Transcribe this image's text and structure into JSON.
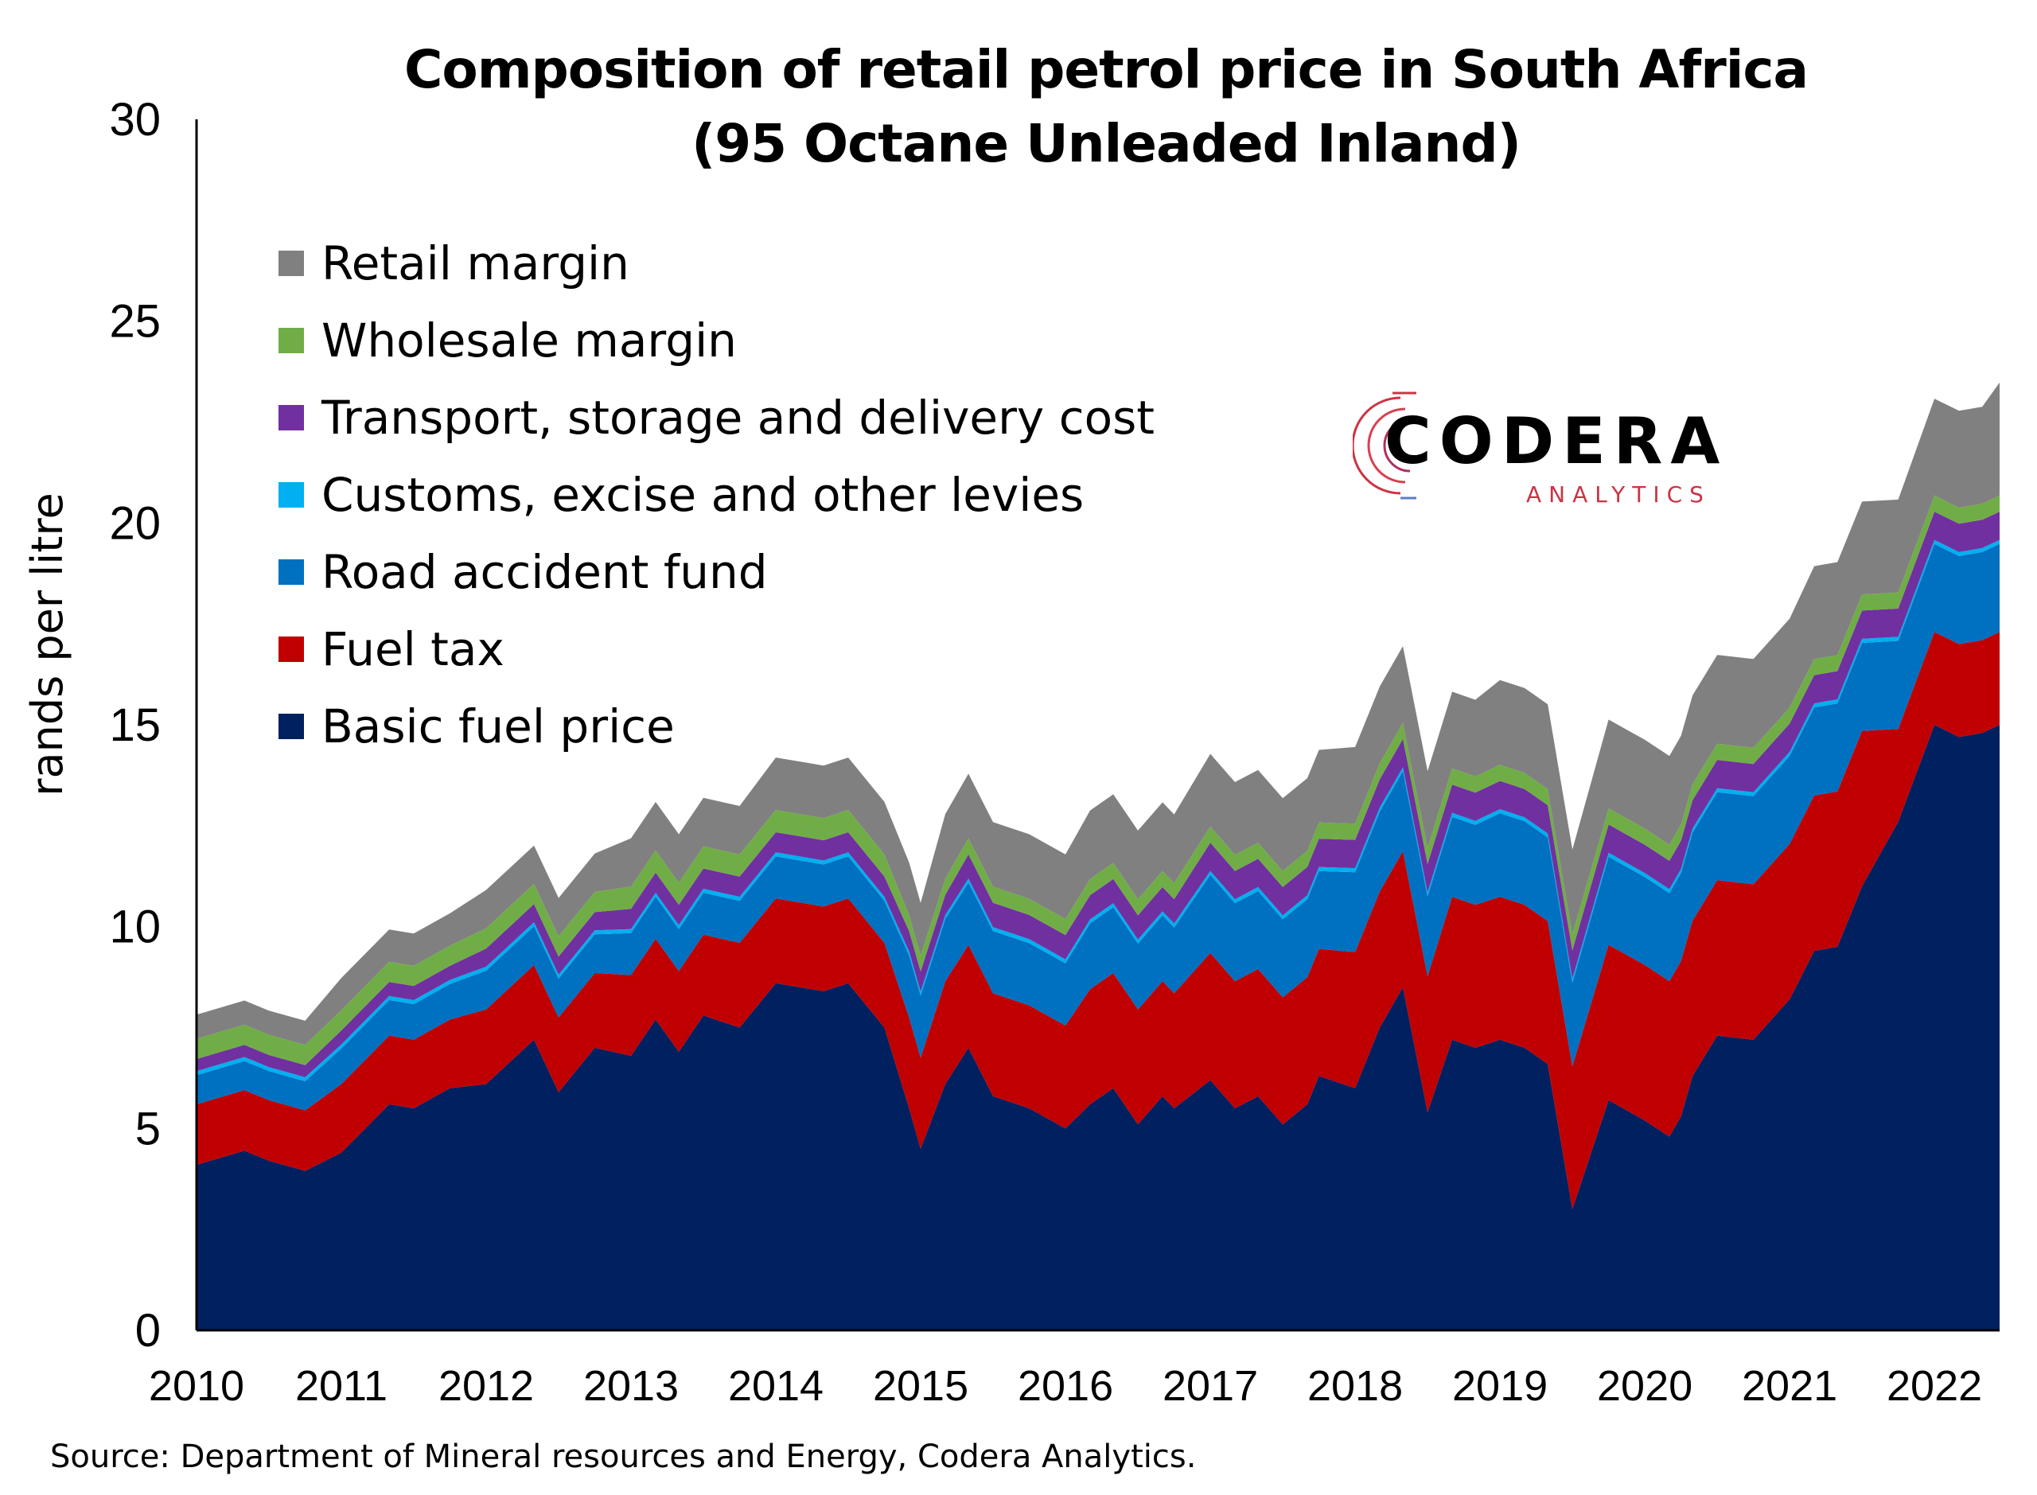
{
  "chart_data": {
    "type": "area",
    "stacked": true,
    "title": "Composition of retail petrol price in South Africa",
    "subtitle": "(95 Octane Unleaded Inland)",
    "ylabel": "rands per litre",
    "xlabel": "",
    "ylim": [
      0,
      30
    ],
    "y_ticks": [
      "0",
      "5",
      "10",
      "15",
      "20",
      "25",
      "30"
    ],
    "x_ticks": [
      "2010",
      "2011",
      "2012",
      "2013",
      "2014",
      "2015",
      "2016",
      "2017",
      "2018",
      "2019",
      "2020",
      "2021",
      "2022"
    ],
    "x_range": [
      2010.0,
      2022.45
    ],
    "grid": false,
    "legend_position": "top-left",
    "x": [
      2010.0,
      2010.33,
      2010.5,
      2010.75,
      2011.0,
      2011.33,
      2011.5,
      2011.75,
      2012.0,
      2012.33,
      2012.5,
      2012.75,
      2013.0,
      2013.17,
      2013.33,
      2013.5,
      2013.75,
      2014.0,
      2014.33,
      2014.5,
      2014.75,
      2014.92,
      2015.0,
      2015.17,
      2015.33,
      2015.5,
      2015.75,
      2016.0,
      2016.17,
      2016.33,
      2016.5,
      2016.67,
      2016.75,
      2017.0,
      2017.17,
      2017.33,
      2017.5,
      2017.67,
      2017.75,
      2018.0,
      2018.17,
      2018.33,
      2018.5,
      2018.67,
      2018.83,
      2019.0,
      2019.17,
      2019.33,
      2019.5,
      2019.75,
      2020.0,
      2020.17,
      2020.25,
      2020.33,
      2020.5,
      2020.75,
      2021.0,
      2021.17,
      2021.33,
      2021.5,
      2021.75,
      2022.0,
      2022.17,
      2022.33,
      2022.45
    ],
    "series": [
      {
        "name": "Basic fuel price",
        "color": "#002060",
        "values": [
          4.1,
          4.45,
          4.2,
          3.95,
          4.4,
          5.6,
          5.5,
          6.0,
          6.1,
          7.2,
          5.9,
          7.0,
          6.8,
          7.7,
          6.9,
          7.8,
          7.5,
          8.6,
          8.4,
          8.6,
          7.5,
          5.5,
          4.5,
          6.1,
          7.0,
          5.8,
          5.5,
          5.0,
          5.6,
          6.0,
          5.1,
          5.8,
          5.5,
          6.2,
          5.5,
          5.8,
          5.1,
          5.6,
          6.3,
          6.0,
          7.5,
          8.5,
          5.4,
          7.2,
          7.0,
          7.2,
          7.0,
          6.6,
          3.0,
          5.7,
          5.2,
          4.8,
          5.3,
          6.3,
          7.3,
          7.2,
          8.2,
          9.4,
          9.5,
          11.0,
          12.6,
          15.0,
          14.7,
          14.8,
          15.0
        ]
      },
      {
        "name": "Fuel tax",
        "color": "#C00000",
        "values": [
          1.5,
          1.5,
          1.5,
          1.5,
          1.7,
          1.7,
          1.7,
          1.7,
          1.85,
          1.85,
          1.85,
          1.85,
          2.0,
          2.0,
          2.0,
          2.0,
          2.1,
          2.1,
          2.1,
          2.1,
          2.1,
          2.25,
          2.25,
          2.55,
          2.55,
          2.55,
          2.55,
          2.55,
          2.85,
          2.85,
          2.85,
          2.85,
          2.85,
          3.15,
          3.15,
          3.15,
          3.15,
          3.15,
          3.15,
          3.37,
          3.37,
          3.37,
          3.37,
          3.54,
          3.54,
          3.54,
          3.54,
          3.54,
          3.54,
          3.85,
          3.85,
          3.85,
          3.85,
          3.85,
          3.85,
          3.85,
          3.85,
          3.85,
          3.85,
          3.85,
          2.3,
          2.3,
          2.3,
          2.3,
          2.3
        ]
      },
      {
        "name": "Road accident fund",
        "color": "#0070C0",
        "values": [
          0.72,
          0.72,
          0.72,
          0.72,
          0.88,
          0.88,
          0.88,
          0.88,
          0.96,
          0.96,
          0.96,
          0.96,
          1.04,
          1.04,
          1.04,
          1.04,
          1.04,
          1.04,
          1.04,
          1.04,
          1.04,
          1.54,
          1.54,
          1.54,
          1.54,
          1.54,
          1.54,
          1.54,
          1.63,
          1.63,
          1.63,
          1.63,
          1.63,
          1.93,
          1.93,
          1.93,
          1.93,
          1.93,
          1.93,
          1.98,
          1.98,
          1.98,
          1.98,
          1.98,
          1.98,
          2.07,
          2.07,
          2.07,
          2.07,
          2.18,
          2.18,
          2.18,
          2.18,
          2.18,
          2.18,
          2.18,
          2.18,
          2.18,
          2.18,
          2.18,
          2.18,
          2.18,
          2.18,
          2.18,
          2.18
        ]
      },
      {
        "name": "Customs, excise and other levies",
        "color": "#00B0F0",
        "values": [
          0.1,
          0.1,
          0.1,
          0.1,
          0.1,
          0.1,
          0.1,
          0.1,
          0.1,
          0.1,
          0.1,
          0.1,
          0.1,
          0.1,
          0.1,
          0.1,
          0.1,
          0.1,
          0.1,
          0.1,
          0.1,
          0.1,
          0.1,
          0.1,
          0.1,
          0.1,
          0.1,
          0.1,
          0.1,
          0.1,
          0.1,
          0.1,
          0.1,
          0.1,
          0.1,
          0.1,
          0.1,
          0.1,
          0.1,
          0.1,
          0.1,
          0.1,
          0.1,
          0.1,
          0.1,
          0.1,
          0.1,
          0.1,
          0.1,
          0.1,
          0.1,
          0.1,
          0.1,
          0.1,
          0.1,
          0.1,
          0.1,
          0.1,
          0.1,
          0.1,
          0.1,
          0.1,
          0.1,
          0.1,
          0.1
        ]
      },
      {
        "name": "Transport, storage and delivery cost",
        "color": "#7030A0",
        "values": [
          0.3,
          0.3,
          0.3,
          0.3,
          0.35,
          0.35,
          0.35,
          0.35,
          0.45,
          0.45,
          0.45,
          0.45,
          0.5,
          0.5,
          0.5,
          0.5,
          0.5,
          0.5,
          0.5,
          0.5,
          0.5,
          0.5,
          0.5,
          0.5,
          0.6,
          0.6,
          0.6,
          0.6,
          0.6,
          0.6,
          0.6,
          0.6,
          0.6,
          0.7,
          0.7,
          0.7,
          0.7,
          0.7,
          0.7,
          0.7,
          0.7,
          0.7,
          0.7,
          0.7,
          0.7,
          0.7,
          0.7,
          0.7,
          0.7,
          0.7,
          0.7,
          0.7,
          0.7,
          0.7,
          0.7,
          0.7,
          0.7,
          0.7,
          0.7,
          0.7,
          0.7,
          0.7,
          0.7,
          0.7,
          0.7
        ]
      },
      {
        "name": "Wholesale margin",
        "color": "#70AD47",
        "values": [
          0.5,
          0.5,
          0.5,
          0.5,
          0.5,
          0.5,
          0.5,
          0.5,
          0.5,
          0.5,
          0.5,
          0.5,
          0.55,
          0.55,
          0.55,
          0.55,
          0.55,
          0.55,
          0.55,
          0.55,
          0.55,
          0.4,
          0.4,
          0.4,
          0.4,
          0.4,
          0.4,
          0.4,
          0.4,
          0.4,
          0.4,
          0.4,
          0.4,
          0.4,
          0.4,
          0.4,
          0.4,
          0.4,
          0.4,
          0.4,
          0.4,
          0.4,
          0.4,
          0.4,
          0.4,
          0.4,
          0.4,
          0.4,
          0.4,
          0.4,
          0.4,
          0.4,
          0.4,
          0.4,
          0.4,
          0.4,
          0.4,
          0.4,
          0.4,
          0.4,
          0.4,
          0.4,
          0.4,
          0.4,
          0.4
        ]
      },
      {
        "name": "Retail margin",
        "color": "#808080",
        "values": [
          0.6,
          0.6,
          0.6,
          0.6,
          0.8,
          0.8,
          0.8,
          0.8,
          0.95,
          0.95,
          0.95,
          0.95,
          1.2,
          1.2,
          1.2,
          1.2,
          1.2,
          1.3,
          1.3,
          1.3,
          1.3,
          1.3,
          1.3,
          1.6,
          1.6,
          1.6,
          1.6,
          1.6,
          1.7,
          1.7,
          1.7,
          1.7,
          1.7,
          1.8,
          1.8,
          1.8,
          1.8,
          1.8,
          1.8,
          1.9,
          1.9,
          1.9,
          1.9,
          1.9,
          1.9,
          2.1,
          2.1,
          2.1,
          2.1,
          2.2,
          2.2,
          2.2,
          2.2,
          2.2,
          2.2,
          2.2,
          2.2,
          2.3,
          2.3,
          2.3,
          2.3,
          2.4,
          2.4,
          2.4,
          2.8
        ]
      }
    ]
  },
  "legend_order": [
    "Retail margin",
    "Wholesale margin",
    "Transport, storage and delivery cost",
    "Customs, excise and other levies",
    "Road accident fund",
    "Fuel tax",
    "Basic fuel price"
  ],
  "logo": {
    "name": "CODERA",
    "tagline": "ANALYTICS",
    "accent_color": "#cc3344"
  },
  "source": "Source: Department of Mineral resources and Energy, Codera Analytics."
}
